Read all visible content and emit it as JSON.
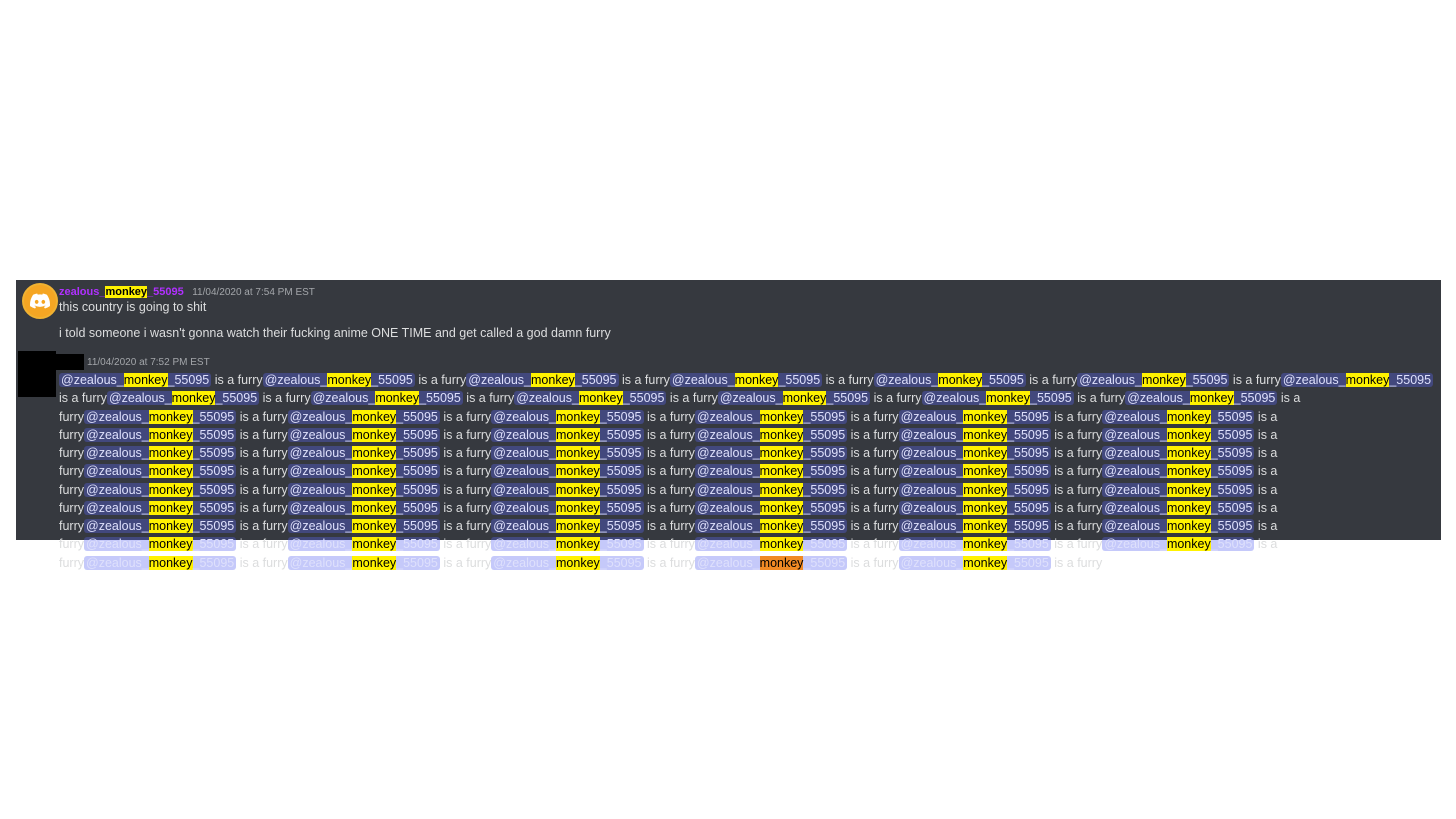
{
  "message1": {
    "username_prefix": "zealous_",
    "username_highlight": "monkey",
    "username_suffix": "_55095",
    "timestamp": "11/04/2020 at 7:54 PM EST",
    "line1": "this country is going to shit",
    "line2": "i told someone i wasn't gonna watch their fucking anime ONE TIME and get called a god damn furry"
  },
  "message2": {
    "timestamp": "11/04/2020 at 7:52 PM EST",
    "mention_prefix": "@zealous_",
    "mention_highlight": "monkey",
    "mention_suffix": "_55095",
    "phrase": " is a furry",
    "repeat_count": 66,
    "orange_index": 64
  },
  "colors": {
    "panel_bg": "#36393f",
    "username": "#b030ff",
    "search_highlight": "#fff200",
    "active_highlight": "#f08a24",
    "avatar": "#f5a623"
  },
  "icons": {
    "avatar": "discord-logo-icon"
  }
}
